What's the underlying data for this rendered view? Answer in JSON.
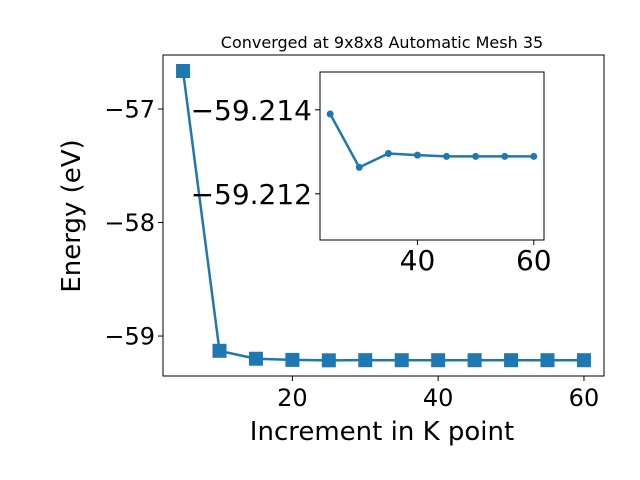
{
  "chart_data": [
    {
      "type": "line",
      "title": "Converged at 9x8x8 Automatic Mesh 35",
      "x_label": "Increment in K point",
      "y_label": "Energy (eV)",
      "x": [
        5,
        10,
        15,
        20,
        25,
        30,
        35,
        40,
        45,
        50,
        55,
        60
      ],
      "series": [
        {
          "color": "#1f77b4",
          "marker": "square",
          "values": [
            -56.665,
            -59.13,
            -59.2,
            -59.21,
            -59.2139,
            -59.21263,
            -59.21296,
            -59.21292,
            -59.21289,
            -59.21289,
            -59.21289,
            -59.21289
          ]
        }
      ],
      "xlim": [
        2.25,
        62.75
      ],
      "ylim": [
        -59.352,
        -56.524
      ],
      "xticks": [
        20,
        40,
        60
      ],
      "yticks": [
        {
          "value": -59,
          "label": "−59"
        },
        {
          "value": -58,
          "label": "−58"
        },
        {
          "value": -57,
          "label": "−57"
        }
      ]
    },
    {
      "type": "line",
      "x": [
        25,
        30,
        35,
        40,
        45,
        50,
        55,
        60
      ],
      "series": [
        {
          "color": "#1f77b4",
          "marker": "circle",
          "values": [
            -59.2139,
            -59.21263,
            -59.21296,
            -59.21292,
            -59.21289,
            -59.21289,
            -59.21289,
            -59.21289
          ]
        }
      ],
      "xlim": [
        23.25,
        61.75
      ],
      "ylim": [
        -59.2109,
        -59.2149
      ],
      "xticks": [
        40,
        60
      ],
      "yticks": [
        {
          "value": -59.212,
          "label": "−59.212"
        },
        {
          "value": -59.214,
          "label": "−59.214"
        }
      ]
    }
  ]
}
